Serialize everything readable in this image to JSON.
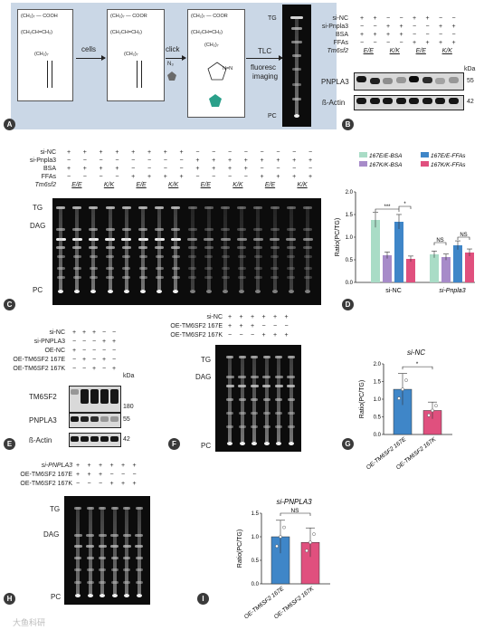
{
  "panels": [
    "A",
    "B",
    "C",
    "D",
    "E",
    "F",
    "G",
    "H",
    "I"
  ],
  "colors": {
    "teal": "#a9dcc6",
    "purple": "#a78bc9",
    "blue": "#3f86c8",
    "pink": "#e0507e",
    "panelA_bg": "#cad7e6"
  },
  "panelA": {
    "mol1": [
      "(CH₂)₇ — COOH",
      "(CH₂CH=CH₂)",
      "(CH₂)₇"
    ],
    "mol2": [
      "(CH₂)₇ — COOR",
      "(CH₂CH=CH₂)",
      "(CH₂)₇"
    ],
    "mol3": [
      "(CH₂)₇ — COOR",
      "(CH₂CH=CH₂)",
      "(CH₂)₇",
      "N=N"
    ],
    "arrow1": "cells",
    "arrow2": "click",
    "arrow3_line1": "TLC",
    "arrow3_line2": "fluoresc",
    "arrow3_line3": "imaging",
    "azide": "N₃",
    "tg": "TG",
    "pc": "PC"
  },
  "panelB": {
    "rows": [
      "si-NC",
      "si-Pnpla3",
      "BSA",
      "FFAs",
      "Tm6sf2"
    ],
    "signs": [
      [
        "+",
        "+",
        "−",
        "−",
        "+",
        "+",
        "−",
        "−"
      ],
      [
        "−",
        "−",
        "+",
        "+",
        "−",
        "−",
        "+",
        "+"
      ],
      [
        "+",
        "+",
        "+",
        "+",
        "−",
        "−",
        "−",
        "−"
      ],
      [
        "−",
        "−",
        "−",
        "−",
        "+",
        "+",
        "+",
        "+"
      ]
    ],
    "genotypes": [
      "E/E",
      "K/K",
      "E/E",
      "K/K"
    ],
    "kda": "kDa",
    "blots": [
      {
        "name": "PNPLA3",
        "mw": "55"
      },
      {
        "name": "ß-Actin",
        "mw": "42"
      }
    ]
  },
  "panelC": {
    "rows": [
      "si-NC",
      "si-Pnpla3",
      "BSA",
      "FFAs",
      "Tm6sf2"
    ],
    "signs": [
      [
        "+",
        "+",
        "+",
        "+",
        "+",
        "+",
        "+",
        "+",
        "−",
        "−",
        "−",
        "−",
        "−",
        "−",
        "−",
        "−"
      ],
      [
        "−",
        "−",
        "−",
        "−",
        "−",
        "−",
        "−",
        "−",
        "+",
        "+",
        "+",
        "+",
        "+",
        "+",
        "+",
        "+"
      ],
      [
        "+",
        "+",
        "+",
        "+",
        "−",
        "−",
        "−",
        "−",
        "+",
        "+",
        "+",
        "+",
        "−",
        "−",
        "−",
        "−"
      ],
      [
        "−",
        "−",
        "−",
        "−",
        "+",
        "+",
        "+",
        "+",
        "−",
        "−",
        "−",
        "−",
        "+",
        "+",
        "+",
        "+"
      ]
    ],
    "genotypes": [
      "E/E",
      "K/K",
      "E/E",
      "K/K",
      "E/E",
      "K/K",
      "E/E",
      "K/K"
    ],
    "tg": "TG",
    "dag": "DAG",
    "pc": "PC"
  },
  "panelD": {
    "ylabel": "Ratio(PC/TG)",
    "legend": [
      "167E/E-BSA",
      "167E/E-FFAs",
      "167K/K-BSA",
      "167K/K-FFAs"
    ],
    "groups": [
      "si-NC",
      "si-Pnpla3"
    ],
    "yticks": [
      "0.0",
      "0.5",
      "1.0",
      "1.5",
      "2.0"
    ],
    "sig": [
      "***",
      "*",
      "NS",
      "NS"
    ]
  },
  "panelE": {
    "rows": [
      "si-NC",
      "si-PNPLA3",
      "OE-NC",
      "OE-TM6SF2 167E",
      "OE-TM6SF2 167K"
    ],
    "signs": [
      [
        "+",
        "+",
        "+",
        "−",
        "−"
      ],
      [
        "−",
        "−",
        "−",
        "+",
        "+"
      ],
      [
        "+",
        "−",
        "−",
        "−",
        "−"
      ],
      [
        "−",
        "+",
        "−",
        "+",
        "−"
      ],
      [
        "−",
        "−",
        "+",
        "−",
        "+"
      ]
    ],
    "kda": "kDa",
    "blots": [
      {
        "name": "TM6SF2",
        "mw": "180"
      },
      {
        "name": "PNPLA3",
        "mw": "55"
      },
      {
        "name": "ß-Actin",
        "mw": "42"
      }
    ]
  },
  "panelF": {
    "rows": [
      "si-NC",
      "OE-TM6SF2 167E",
      "OE-TM6SF2 167K"
    ],
    "signs": [
      [
        "+",
        "+",
        "+",
        "+",
        "+",
        "+"
      ],
      [
        "+",
        "+",
        "+",
        "−",
        "−",
        "−"
      ],
      [
        "−",
        "−",
        "−",
        "+",
        "+",
        "+"
      ]
    ],
    "tg": "TG",
    "dag": "DAG",
    "pc": "PC"
  },
  "panelG": {
    "title": "si-NC",
    "ylabel": "Ratio(PC/TG)",
    "yticks": [
      "0.0",
      "0.5",
      "1.0",
      "1.5",
      "2.0"
    ],
    "categories": [
      "OE-TM6SF2 167E",
      "OE-TM6SF2 167K"
    ],
    "sig": "*"
  },
  "panelH": {
    "rows": [
      "si-PNPLA3",
      "OE-TM6SF2 167E",
      "OE-TM6SF2 167K"
    ],
    "signs": [
      [
        "+",
        "+",
        "+",
        "+",
        "+",
        "+"
      ],
      [
        "+",
        "+",
        "+",
        "−",
        "−",
        "−"
      ],
      [
        "−",
        "−",
        "−",
        "+",
        "+",
        "+"
      ]
    ],
    "tg": "TG",
    "dag": "DAG",
    "pc": "PC"
  },
  "panelI": {
    "title": "si-PNPLA3",
    "ylabel": "Ratio(PC/TG)",
    "yticks": [
      "0.0",
      "0.5",
      "1.0",
      "1.5"
    ],
    "categories": [
      "OE-TM6SF2 167E",
      "OE-TM6SF2 167K"
    ],
    "sig": "NS"
  },
  "watermark": "大鱼科研",
  "chart_data": [
    {
      "type": "bar",
      "title": "",
      "ylabel": "Ratio(PC/TG)",
      "ylim": [
        0,
        2.0
      ],
      "categories": [
        "si-NC",
        "si-Pnpla3"
      ],
      "series": [
        {
          "name": "167E/E-BSA",
          "values": [
            1.38,
            0.62
          ]
        },
        {
          "name": "167K/K-BSA",
          "values": [
            0.6,
            0.56
          ]
        },
        {
          "name": "167E/E-FFAs",
          "values": [
            1.34,
            0.82
          ]
        },
        {
          "name": "167K/K-FFAs",
          "values": [
            0.52,
            0.66
          ]
        }
      ]
    },
    {
      "type": "bar",
      "title": "si-NC",
      "ylabel": "Ratio(PC/TG)",
      "ylim": [
        0,
        2.0
      ],
      "categories": [
        "OE-TM6SF2 167E",
        "OE-TM6SF2 167K"
      ],
      "series": [
        {
          "values": [
            1.28,
            0.68
          ]
        }
      ]
    },
    {
      "type": "bar",
      "title": "si-PNPLA3",
      "ylabel": "Ratio(PC/TG)",
      "ylim": [
        0,
        1.5
      ],
      "categories": [
        "OE-TM6SF2 167E",
        "OE-TM6SF2 167K"
      ],
      "series": [
        {
          "values": [
            1.0,
            0.88
          ]
        }
      ]
    }
  ]
}
